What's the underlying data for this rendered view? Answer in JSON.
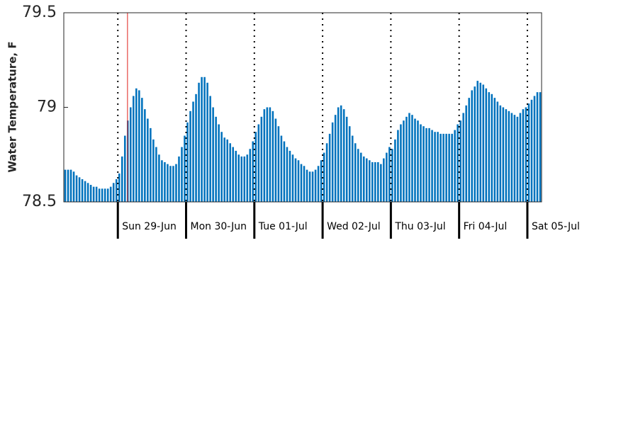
{
  "chart_data": {
    "type": "bar",
    "y_label": "Water Temperature, F",
    "color": "#0072bd",
    "xlim": [
      0,
      168
    ],
    "xticks": [
      {
        "value": 19,
        "label": "Sun 29-Jun"
      },
      {
        "value": 43,
        "label": "Mon 30-Jun"
      },
      {
        "value": 67,
        "label": "Tue 01-Jul"
      },
      {
        "value": 91,
        "label": "Wed 02-Jul"
      },
      {
        "value": 115,
        "label": "Thu 03-Jul"
      },
      {
        "value": 139,
        "label": "Fri 04-Jul"
      },
      {
        "value": 163,
        "label": "Sat 05-Jul"
      }
    ],
    "ylim": [
      78.5,
      79.5
    ],
    "yticks": [
      78.5,
      79,
      79.5
    ],
    "marker_x": 22.4,
    "marker_color": "#e0201b",
    "values": [
      78.67,
      78.67,
      78.67,
      78.66,
      78.64,
      78.63,
      78.62,
      78.61,
      78.6,
      78.59,
      78.58,
      78.58,
      78.57,
      78.57,
      78.57,
      78.57,
      78.58,
      78.6,
      78.62,
      78.65,
      78.74,
      78.85,
      78.93,
      79.0,
      79.06,
      79.1,
      79.09,
      79.05,
      78.99,
      78.94,
      78.89,
      78.83,
      78.79,
      78.75,
      78.72,
      78.71,
      78.7,
      78.69,
      78.69,
      78.7,
      78.74,
      78.79,
      78.85,
      78.92,
      78.98,
      79.03,
      79.07,
      79.13,
      79.16,
      79.16,
      79.13,
      79.06,
      79.0,
      78.95,
      78.91,
      78.87,
      78.84,
      78.83,
      78.81,
      78.79,
      78.77,
      78.75,
      78.74,
      78.74,
      78.75,
      78.78,
      78.82,
      78.87,
      78.91,
      78.95,
      78.99,
      79.0,
      79.0,
      78.98,
      78.94,
      78.9,
      78.85,
      78.82,
      78.79,
      78.77,
      78.75,
      78.73,
      78.72,
      78.7,
      78.69,
      78.67,
      78.66,
      78.66,
      78.67,
      78.69,
      78.72,
      78.76,
      78.81,
      78.86,
      78.92,
      78.96,
      79.0,
      79.01,
      78.99,
      78.95,
      78.9,
      78.85,
      78.81,
      78.78,
      78.76,
      78.74,
      78.73,
      78.72,
      78.71,
      78.71,
      78.71,
      78.7,
      78.73,
      78.76,
      78.79,
      78.78,
      78.83,
      78.88,
      78.91,
      78.93,
      78.95,
      78.97,
      78.96,
      78.94,
      78.93,
      78.91,
      78.9,
      78.89,
      78.89,
      78.88,
      78.87,
      78.87,
      78.86,
      78.86,
      78.86,
      78.86,
      78.86,
      78.88,
      78.91,
      78.93,
      78.97,
      79.01,
      79.05,
      79.09,
      79.11,
      79.14,
      79.13,
      79.12,
      79.1,
      79.08,
      79.07,
      79.05,
      79.03,
      79.01,
      79.0,
      78.99,
      78.98,
      78.97,
      78.96,
      78.95,
      78.97,
      78.99,
      79.0,
      79.02,
      79.04,
      79.06,
      79.08,
      79.08
    ]
  }
}
